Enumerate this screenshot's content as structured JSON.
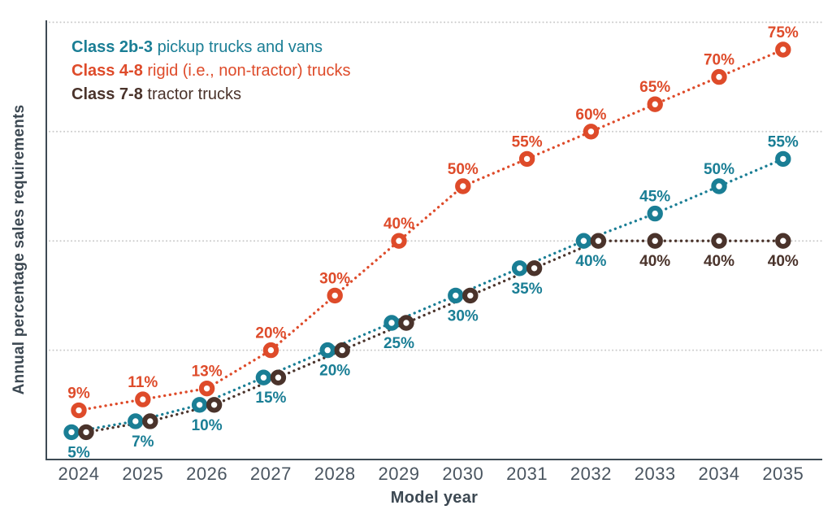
{
  "chart_data": {
    "type": "line",
    "title": "",
    "xlabel": "Model year",
    "ylabel": "Annual percentage sales requirements",
    "categories": [
      "2024",
      "2025",
      "2026",
      "2027",
      "2028",
      "2029",
      "2030",
      "2031",
      "2032",
      "2033",
      "2034",
      "2035"
    ],
    "ylim": [
      0,
      80
    ],
    "gridlines_y": [
      20,
      40,
      60,
      80
    ],
    "grid_style": "dotted horizontal gridlines, light gray",
    "legend_position": "top-left inside plot area",
    "marker_style": "open ring (donut) markers on dotted lines",
    "series": [
      {
        "name": "Class 2b-3 pickup trucks and vans",
        "color": "#1a7e95",
        "values": [
          5,
          7,
          10,
          15,
          20,
          25,
          30,
          35,
          40,
          45,
          50,
          55
        ],
        "labels": [
          "5%",
          "7%",
          "10%",
          "15%",
          "20%",
          "25%",
          "30%",
          "35%",
          "40%",
          "45%",
          "50%",
          "55%"
        ],
        "label_side": [
          "below",
          "below",
          "below",
          "below",
          "below",
          "below",
          "below",
          "below",
          "below",
          "above",
          "above",
          "above"
        ]
      },
      {
        "name": "Class 4-8 rigid (i.e., non-tractor) trucks",
        "color": "#de4b2a",
        "values": [
          9,
          11,
          13,
          20,
          30,
          40,
          50,
          55,
          60,
          65,
          70,
          75
        ],
        "labels": [
          "9%",
          "11%",
          "13%",
          "20%",
          "30%",
          "40%",
          "50%",
          "55%",
          "60%",
          "65%",
          "70%",
          "75%"
        ],
        "label_side": [
          "above",
          "above",
          "above",
          "above",
          "above",
          "above",
          "above",
          "above",
          "above",
          "above",
          "above",
          "above"
        ]
      },
      {
        "name": "Class 7-8 tractor trucks",
        "color": "#4a332b",
        "values": [
          5,
          7,
          10,
          15,
          20,
          25,
          30,
          35,
          40,
          40,
          40,
          40
        ],
        "labels": [
          null,
          null,
          null,
          null,
          null,
          null,
          null,
          null,
          null,
          "40%",
          "40%",
          "40%"
        ],
        "label_side": [
          null,
          null,
          null,
          null,
          null,
          null,
          null,
          null,
          null,
          "below",
          "below",
          "below"
        ]
      }
    ]
  },
  "legend": {
    "items": [
      {
        "bold": "Class 2b-3",
        "text": " pickup trucks and vans",
        "color": "#1a7e95"
      },
      {
        "bold": "Class 4-8",
        "text": " rigid (i.e., non-tractor) trucks",
        "color": "#de4b2a"
      },
      {
        "bold": "Class 7-8",
        "text": " tractor trucks",
        "color": "#4a332b"
      }
    ]
  },
  "colors": {
    "axis": "#3e4a54",
    "gridline": "#cbcbcb",
    "tick_text": "#4a5560",
    "background": "#ffffff"
  }
}
